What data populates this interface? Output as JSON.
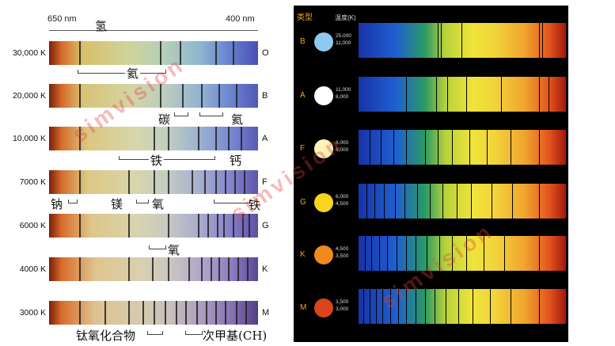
{
  "left": {
    "wavelength_red": "650 nm",
    "wavelength_blue": "400 nm",
    "rows": [
      {
        "temp": "30,000 K",
        "cls": "O"
      },
      {
        "temp": "20,000 K",
        "cls": "B"
      },
      {
        "temp": "10,000 K",
        "cls": "A"
      },
      {
        "temp": "7000 K",
        "cls": "F"
      },
      {
        "temp": "6000 K",
        "cls": "G"
      },
      {
        "temp": "4000 K",
        "cls": "K"
      },
      {
        "temp": "3000 K",
        "cls": "M"
      }
    ],
    "elements": {
      "hydrogen": "氢",
      "helium1": "氦",
      "carbon": "碳",
      "helium2": "氦",
      "iron1": "铁",
      "calcium": "钙",
      "sodium": "钠",
      "magnesium": "镁",
      "oxygen1": "氧",
      "iron2": "铁",
      "oxygen2": "氧",
      "titanium_oxide": "钛氧化合物",
      "methylidyne": "次甲基(CH)"
    }
  },
  "right": {
    "header_type": "类型",
    "header_temp": "温度(K)",
    "rows": [
      {
        "cls": "B",
        "t1": "25,000",
        "t2": "11,000",
        "color": "#8ec9f2"
      },
      {
        "cls": "A",
        "t1": "11,000",
        "t2": "8,000",
        "color": "#ffffff"
      },
      {
        "cls": "F",
        "t1": "8,000",
        "t2": "6,000",
        "color": "#fbf3b8"
      },
      {
        "cls": "G",
        "t1": "6,000",
        "t2": "4,500",
        "color": "#f6d51c"
      },
      {
        "cls": "K",
        "t1": "4,500",
        "t2": "3,500",
        "color": "#f08a1c"
      },
      {
        "cls": "M",
        "t1": "3,500",
        "t2": "3,000",
        "color": "#d8451c"
      }
    ]
  },
  "watermark": "simvision"
}
